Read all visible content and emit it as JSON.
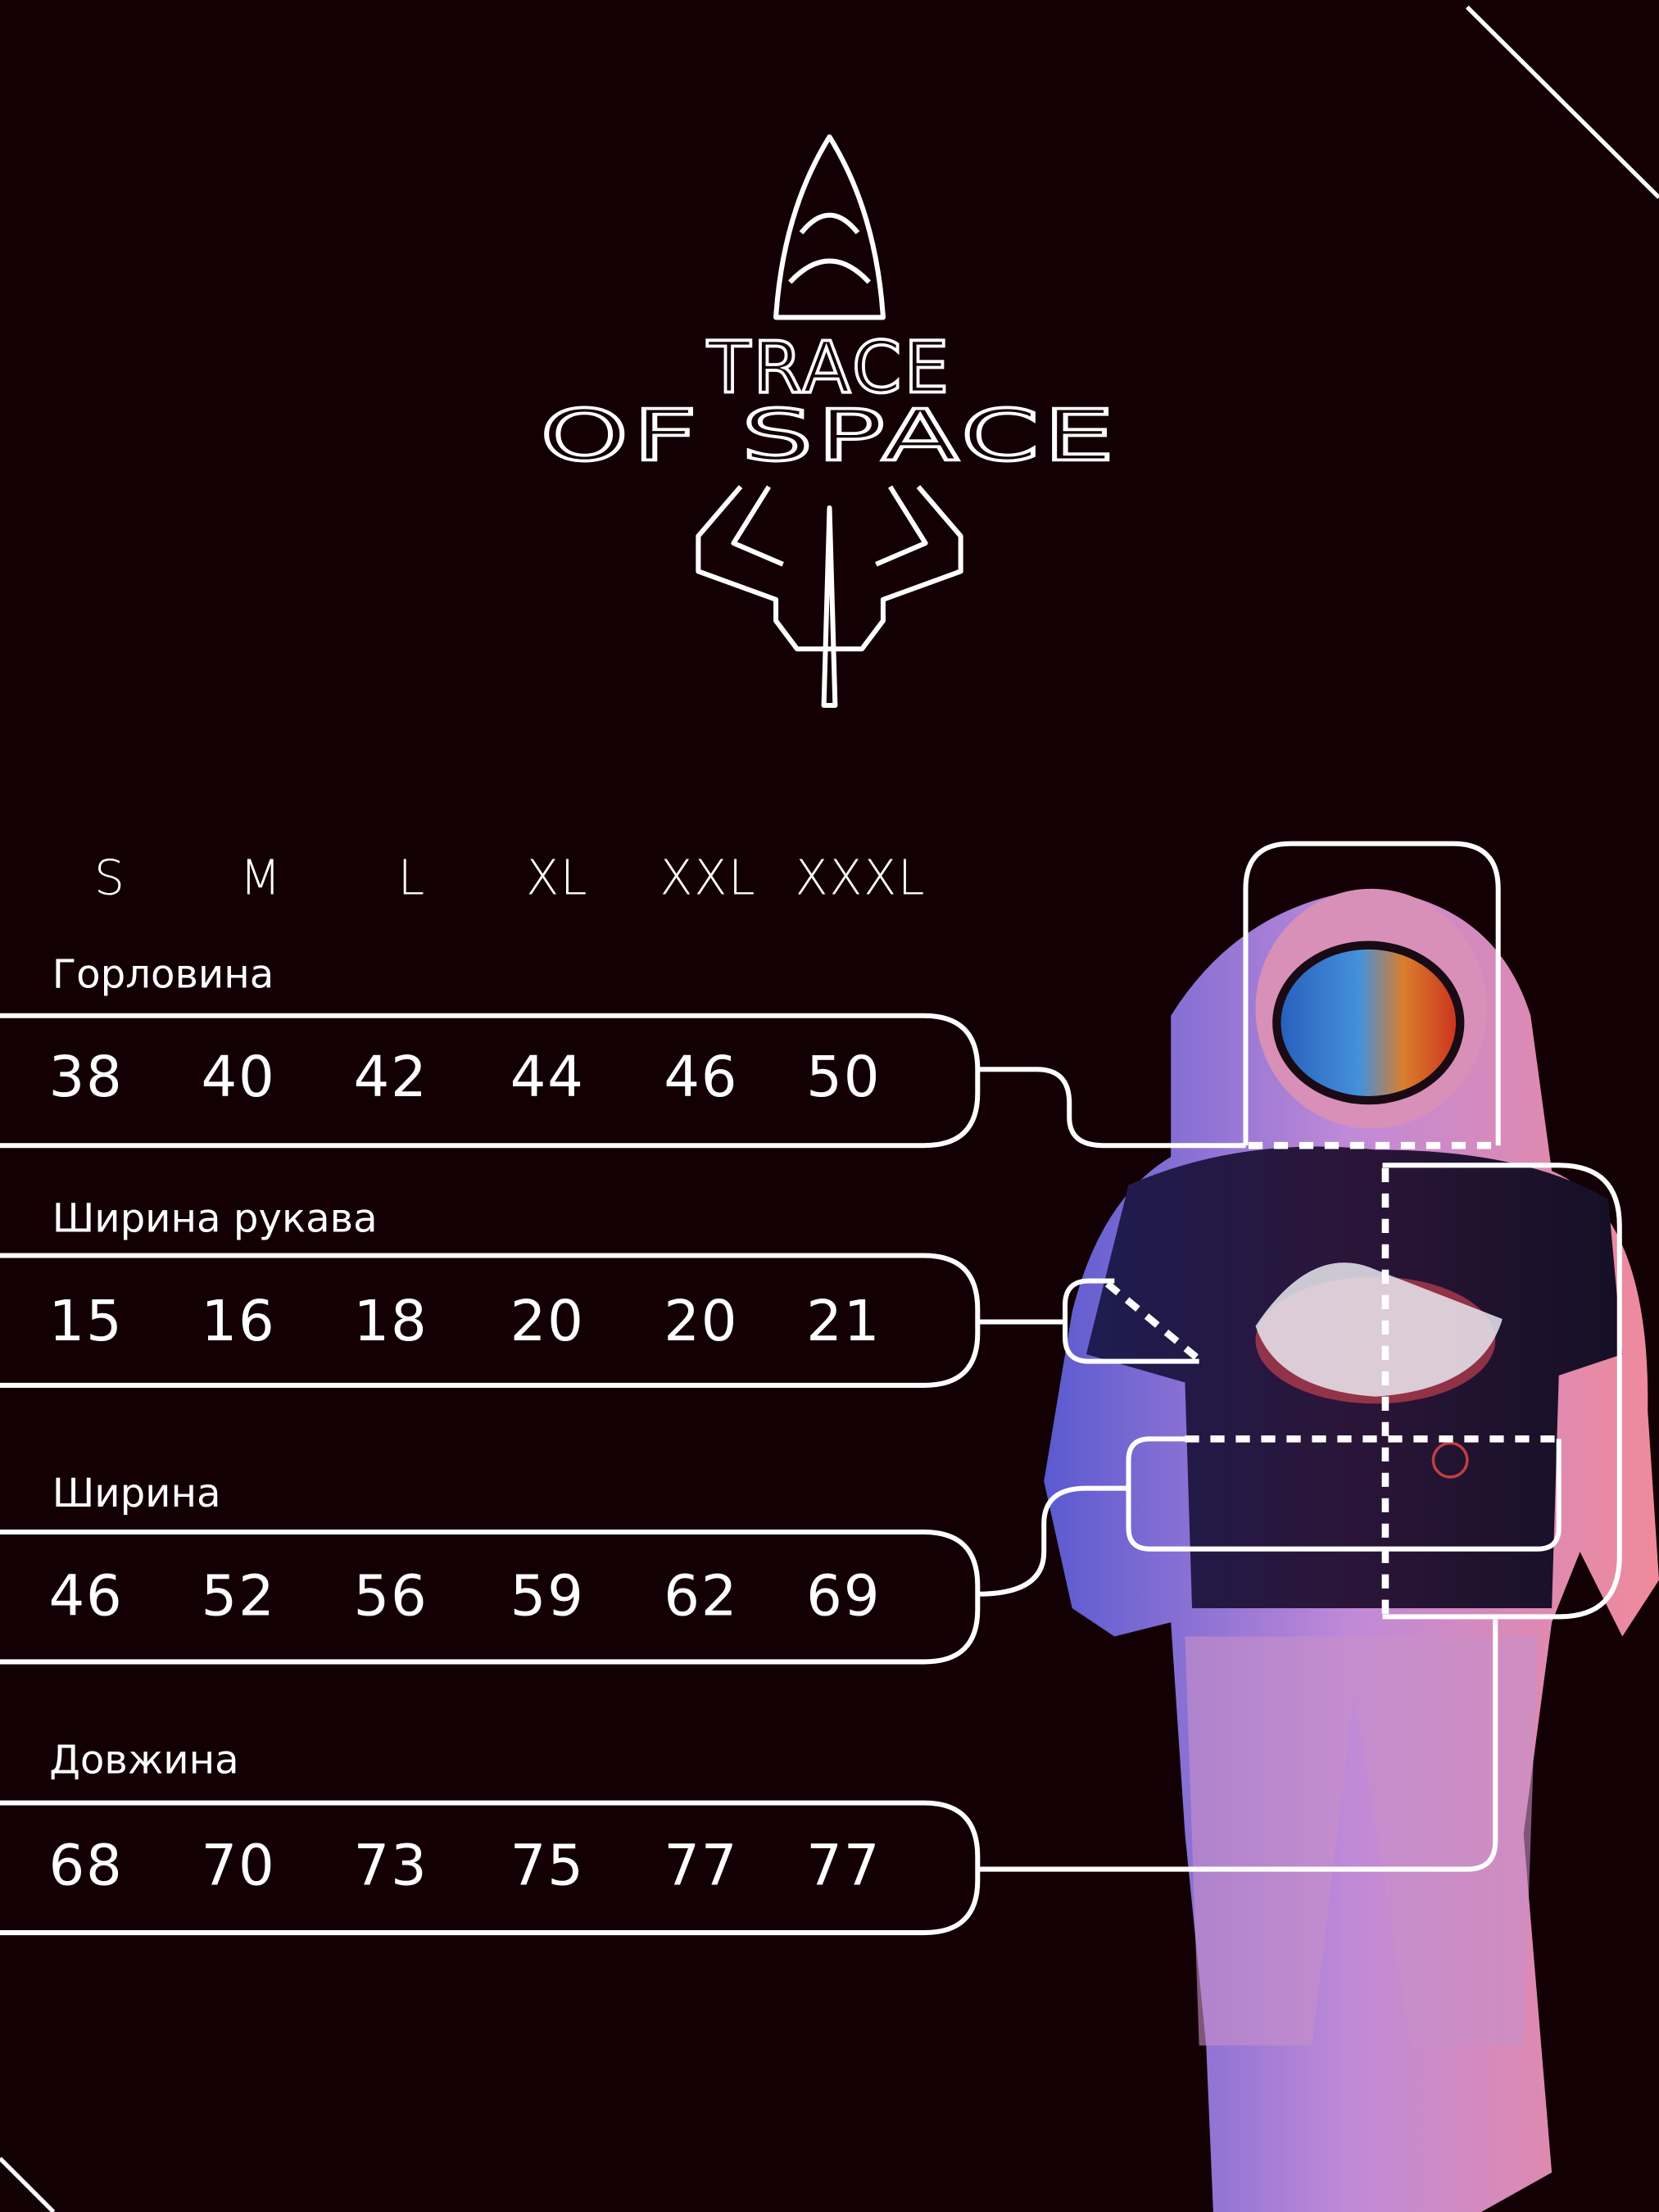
{
  "brand": {
    "line1": "TRACE",
    "line2": "OF SPACE",
    "logo_icon": "rocket-icon"
  },
  "sizes": [
    "S",
    "M",
    "L",
    "XL",
    "XXL",
    "XXXL"
  ],
  "measurements": [
    {
      "label": "Горловина",
      "values": [
        "38",
        "40",
        "42",
        "44",
        "46",
        "50"
      ]
    },
    {
      "label": "Ширина рукава",
      "values": [
        "15",
        "16",
        "18",
        "20",
        "20",
        "21"
      ]
    },
    {
      "label": "Ширина",
      "values": [
        "46",
        "52",
        "56",
        "59",
        "62",
        "69"
      ]
    },
    {
      "label": "Довжина",
      "values": [
        "68",
        "70",
        "73",
        "75",
        "77",
        "77"
      ]
    }
  ],
  "colors": {
    "background": "#130005",
    "line": "#ffffff",
    "shirt": "#1b1840",
    "suit_pink": "#e88aa8",
    "suit_blue": "#6a6ad8"
  }
}
